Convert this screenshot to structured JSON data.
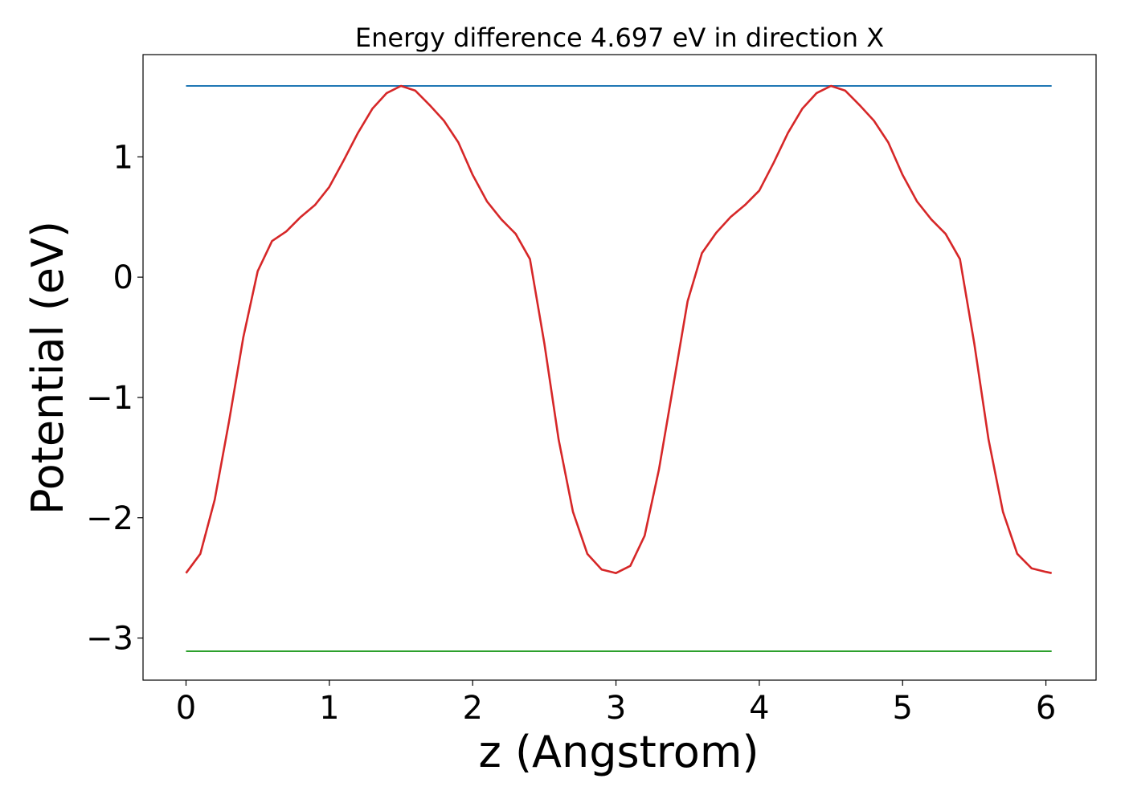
{
  "chart_data": {
    "type": "line",
    "title": "Energy difference 4.697 eV in direction X",
    "xlabel": "z (Angstrom)",
    "ylabel": "Potential (eV)",
    "xlim": [
      -0.3,
      6.35
    ],
    "ylim": [
      -3.35,
      1.85
    ],
    "xticks": [
      0,
      1,
      2,
      3,
      4,
      5,
      6
    ],
    "xtick_labels": [
      "0",
      "1",
      "2",
      "3",
      "4",
      "5",
      "6"
    ],
    "yticks": [
      -3,
      -2,
      -1,
      0,
      1
    ],
    "ytick_labels": [
      "−3",
      "−2",
      "−1",
      "0",
      "1"
    ],
    "grid": false,
    "legend": "none",
    "series": [
      {
        "color": "#1f77b4",
        "x": [
          0,
          6.04
        ],
        "y": [
          1.59,
          1.59
        ]
      },
      {
        "color": "#2ca02c",
        "x": [
          0,
          6.04
        ],
        "y": [
          -3.11,
          -3.11
        ]
      },
      {
        "color": "#d62728",
        "x": [
          0,
          0.1,
          0.2,
          0.3,
          0.4,
          0.5,
          0.6,
          0.7,
          0.8,
          0.9,
          1.0,
          1.1,
          1.2,
          1.3,
          1.4,
          1.5,
          1.6,
          1.7,
          1.8,
          1.9,
          2.0,
          2.1,
          2.2,
          2.3,
          2.4,
          2.5,
          2.6,
          2.7,
          2.8,
          2.9,
          3.0,
          3.1,
          3.2,
          3.3,
          3.4,
          3.5,
          3.6,
          3.7,
          3.8,
          3.9,
          4.0,
          4.1,
          4.2,
          4.3,
          4.4,
          4.5,
          4.6,
          4.7,
          4.8,
          4.9,
          5.0,
          5.1,
          5.2,
          5.3,
          5.4,
          5.5,
          5.6,
          5.7,
          5.8,
          5.9,
          6.0,
          6.04
        ],
        "y": [
          -2.46,
          -2.3,
          -1.85,
          -1.2,
          -0.5,
          0.05,
          0.3,
          0.38,
          0.5,
          0.6,
          0.75,
          0.97,
          1.2,
          1.4,
          1.53,
          1.59,
          1.55,
          1.43,
          1.3,
          1.12,
          0.85,
          0.63,
          0.48,
          0.36,
          0.15,
          -0.55,
          -1.35,
          -1.95,
          -2.3,
          -2.43,
          -2.46,
          -2.4,
          -2.15,
          -1.6,
          -0.9,
          -0.2,
          0.2,
          0.37,
          0.5,
          0.6,
          0.72,
          0.95,
          1.2,
          1.4,
          1.53,
          1.59,
          1.55,
          1.43,
          1.3,
          1.12,
          0.85,
          0.63,
          0.48,
          0.36,
          0.15,
          -0.55,
          -1.35,
          -1.95,
          -2.3,
          -2.42,
          -2.45,
          -2.46
        ]
      }
    ]
  }
}
